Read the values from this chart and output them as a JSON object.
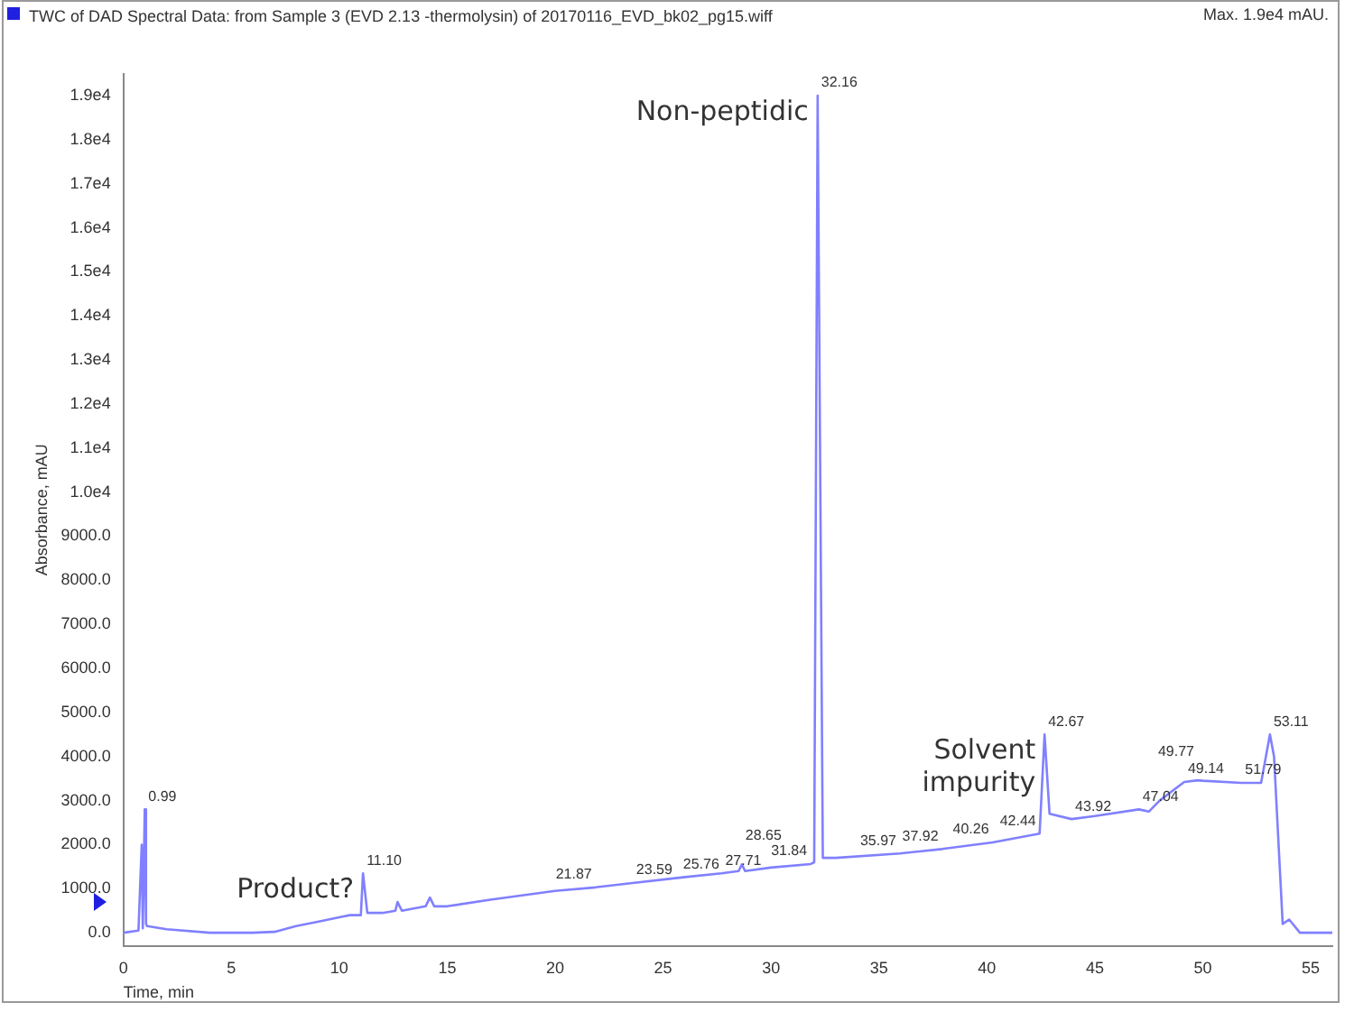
{
  "chart_data": {
    "type": "line",
    "title": "TWC of DAD Spectral Data: from Sample 3 (EVD 2.13 -thermolysin) of 20170116_EVD_bk02_pg15.wiff",
    "xlabel": "Time, min",
    "ylabel": "Absorbance, mAU",
    "x": [
      0,
      0.7,
      0.85,
      0.9,
      0.99,
      1.05,
      1.1,
      2,
      4,
      6,
      7,
      8,
      9,
      10,
      10.5,
      11,
      11.1,
      11.3,
      12,
      12.6,
      12.7,
      12.9,
      14,
      14.2,
      14.4,
      15,
      17,
      20,
      21.87,
      23.59,
      25.76,
      27.71,
      28.5,
      28.65,
      28.8,
      30,
      31.84,
      32.0,
      32.16,
      32.4,
      33,
      35.97,
      37.92,
      40.26,
      42.44,
      42.67,
      42.9,
      43.92,
      45,
      47.04,
      47.5,
      48,
      49.14,
      49.77,
      50,
      51.79,
      52.7,
      53.11,
      53.3,
      53.7,
      54,
      54.5,
      55,
      56
    ],
    "series": [
      {
        "color": "#8080ff",
        "values": [
          0,
          50,
          2000,
          100,
          2800,
          200,
          150,
          80,
          0,
          0,
          20,
          150,
          250,
          350,
          400,
          400,
          1350,
          450,
          450,
          500,
          700,
          500,
          600,
          800,
          600,
          600,
          750,
          950,
          1030,
          1130,
          1250,
          1350,
          1400,
          1550,
          1400,
          1480,
          1560,
          1600,
          19000,
          1700,
          1700,
          1800,
          1900,
          2050,
          2250,
          4500,
          2700,
          2580,
          2650,
          2800,
          2750,
          3000,
          3420,
          3460,
          3450,
          3400,
          3400,
          4500,
          4000,
          200,
          300,
          0,
          0,
          0
        ]
      }
    ],
    "xlim": [
      0,
      56
    ],
    "xticks": [
      0,
      5,
      10,
      15,
      20,
      25,
      30,
      35,
      40,
      45,
      50,
      55
    ],
    "ylim": [
      -300,
      19500
    ],
    "yticks": [
      {
        "value": 0,
        "label": "0.0"
      },
      {
        "value": 1000,
        "label": "1000.0"
      },
      {
        "value": 2000,
        "label": "2000.0"
      },
      {
        "value": 3000,
        "label": "3000.0"
      },
      {
        "value": 4000,
        "label": "4000.0"
      },
      {
        "value": 5000,
        "label": "5000.0"
      },
      {
        "value": 6000,
        "label": "6000.0"
      },
      {
        "value": 7000,
        "label": "7000.0"
      },
      {
        "value": 8000,
        "label": "8000.0"
      },
      {
        "value": 9000,
        "label": "9000.0"
      },
      {
        "value": 10000,
        "label": "1.0e4"
      },
      {
        "value": 11000,
        "label": "1.1e4"
      },
      {
        "value": 12000,
        "label": "1.2e4"
      },
      {
        "value": 13000,
        "label": "1.3e4"
      },
      {
        "value": 14000,
        "label": "1.4e4"
      },
      {
        "value": 15000,
        "label": "1.5e4"
      },
      {
        "value": 16000,
        "label": "1.6e4"
      },
      {
        "value": 17000,
        "label": "1.7e4"
      },
      {
        "value": 18000,
        "label": "1.8e4"
      },
      {
        "value": 19000,
        "label": "1.9e4"
      }
    ],
    "grid": false,
    "legend": false,
    "marker": "none",
    "line_style": "solid",
    "annotations": [
      "Max. 1.9e4 mAU.",
      {
        "text": "0.99",
        "x": 0.99,
        "y": 2800
      },
      {
        "text": "11.10",
        "x": 11.1,
        "y": 1350
      },
      {
        "text": "21.87",
        "x": 21.87,
        "y": 1030
      },
      {
        "text": "23.59",
        "x": 23.59,
        "y": 1130
      },
      {
        "text": "25.76",
        "x": 25.76,
        "y": 1250
      },
      {
        "text": "27.71",
        "x": 27.71,
        "y": 1350
      },
      {
        "text": "28.65",
        "x": 28.65,
        "y": 1550
      },
      {
        "text": "31.84",
        "x": 31.84,
        "y": 1560
      },
      {
        "text": "32.16",
        "x": 32.16,
        "y": 19000
      },
      {
        "text": "35.97",
        "x": 35.97,
        "y": 1800
      },
      {
        "text": "37.92",
        "x": 37.92,
        "y": 1900
      },
      {
        "text": "40.26",
        "x": 40.26,
        "y": 2050
      },
      {
        "text": "42.44",
        "x": 42.44,
        "y": 2250
      },
      {
        "text": "42.67",
        "x": 42.67,
        "y": 4500
      },
      {
        "text": "43.92",
        "x": 43.92,
        "y": 2580
      },
      {
        "text": "47.04",
        "x": 47.04,
        "y": 2800
      },
      {
        "text": "49.14",
        "x": 49.14,
        "y": 3420
      },
      {
        "text": "49.77",
        "x": 49.77,
        "y": 3460
      },
      {
        "text": "51.79",
        "x": 51.79,
        "y": 3400
      },
      {
        "text": "53.11",
        "x": 53.11,
        "y": 4500
      },
      {
        "text": "Non-peptidic",
        "x": 32.16,
        "y": 19000
      },
      {
        "text": "Product?",
        "x": 11.1,
        "y": 1350
      },
      {
        "text": "Solvent\nimpurity",
        "x": 42.67,
        "y": 4500
      }
    ]
  }
}
